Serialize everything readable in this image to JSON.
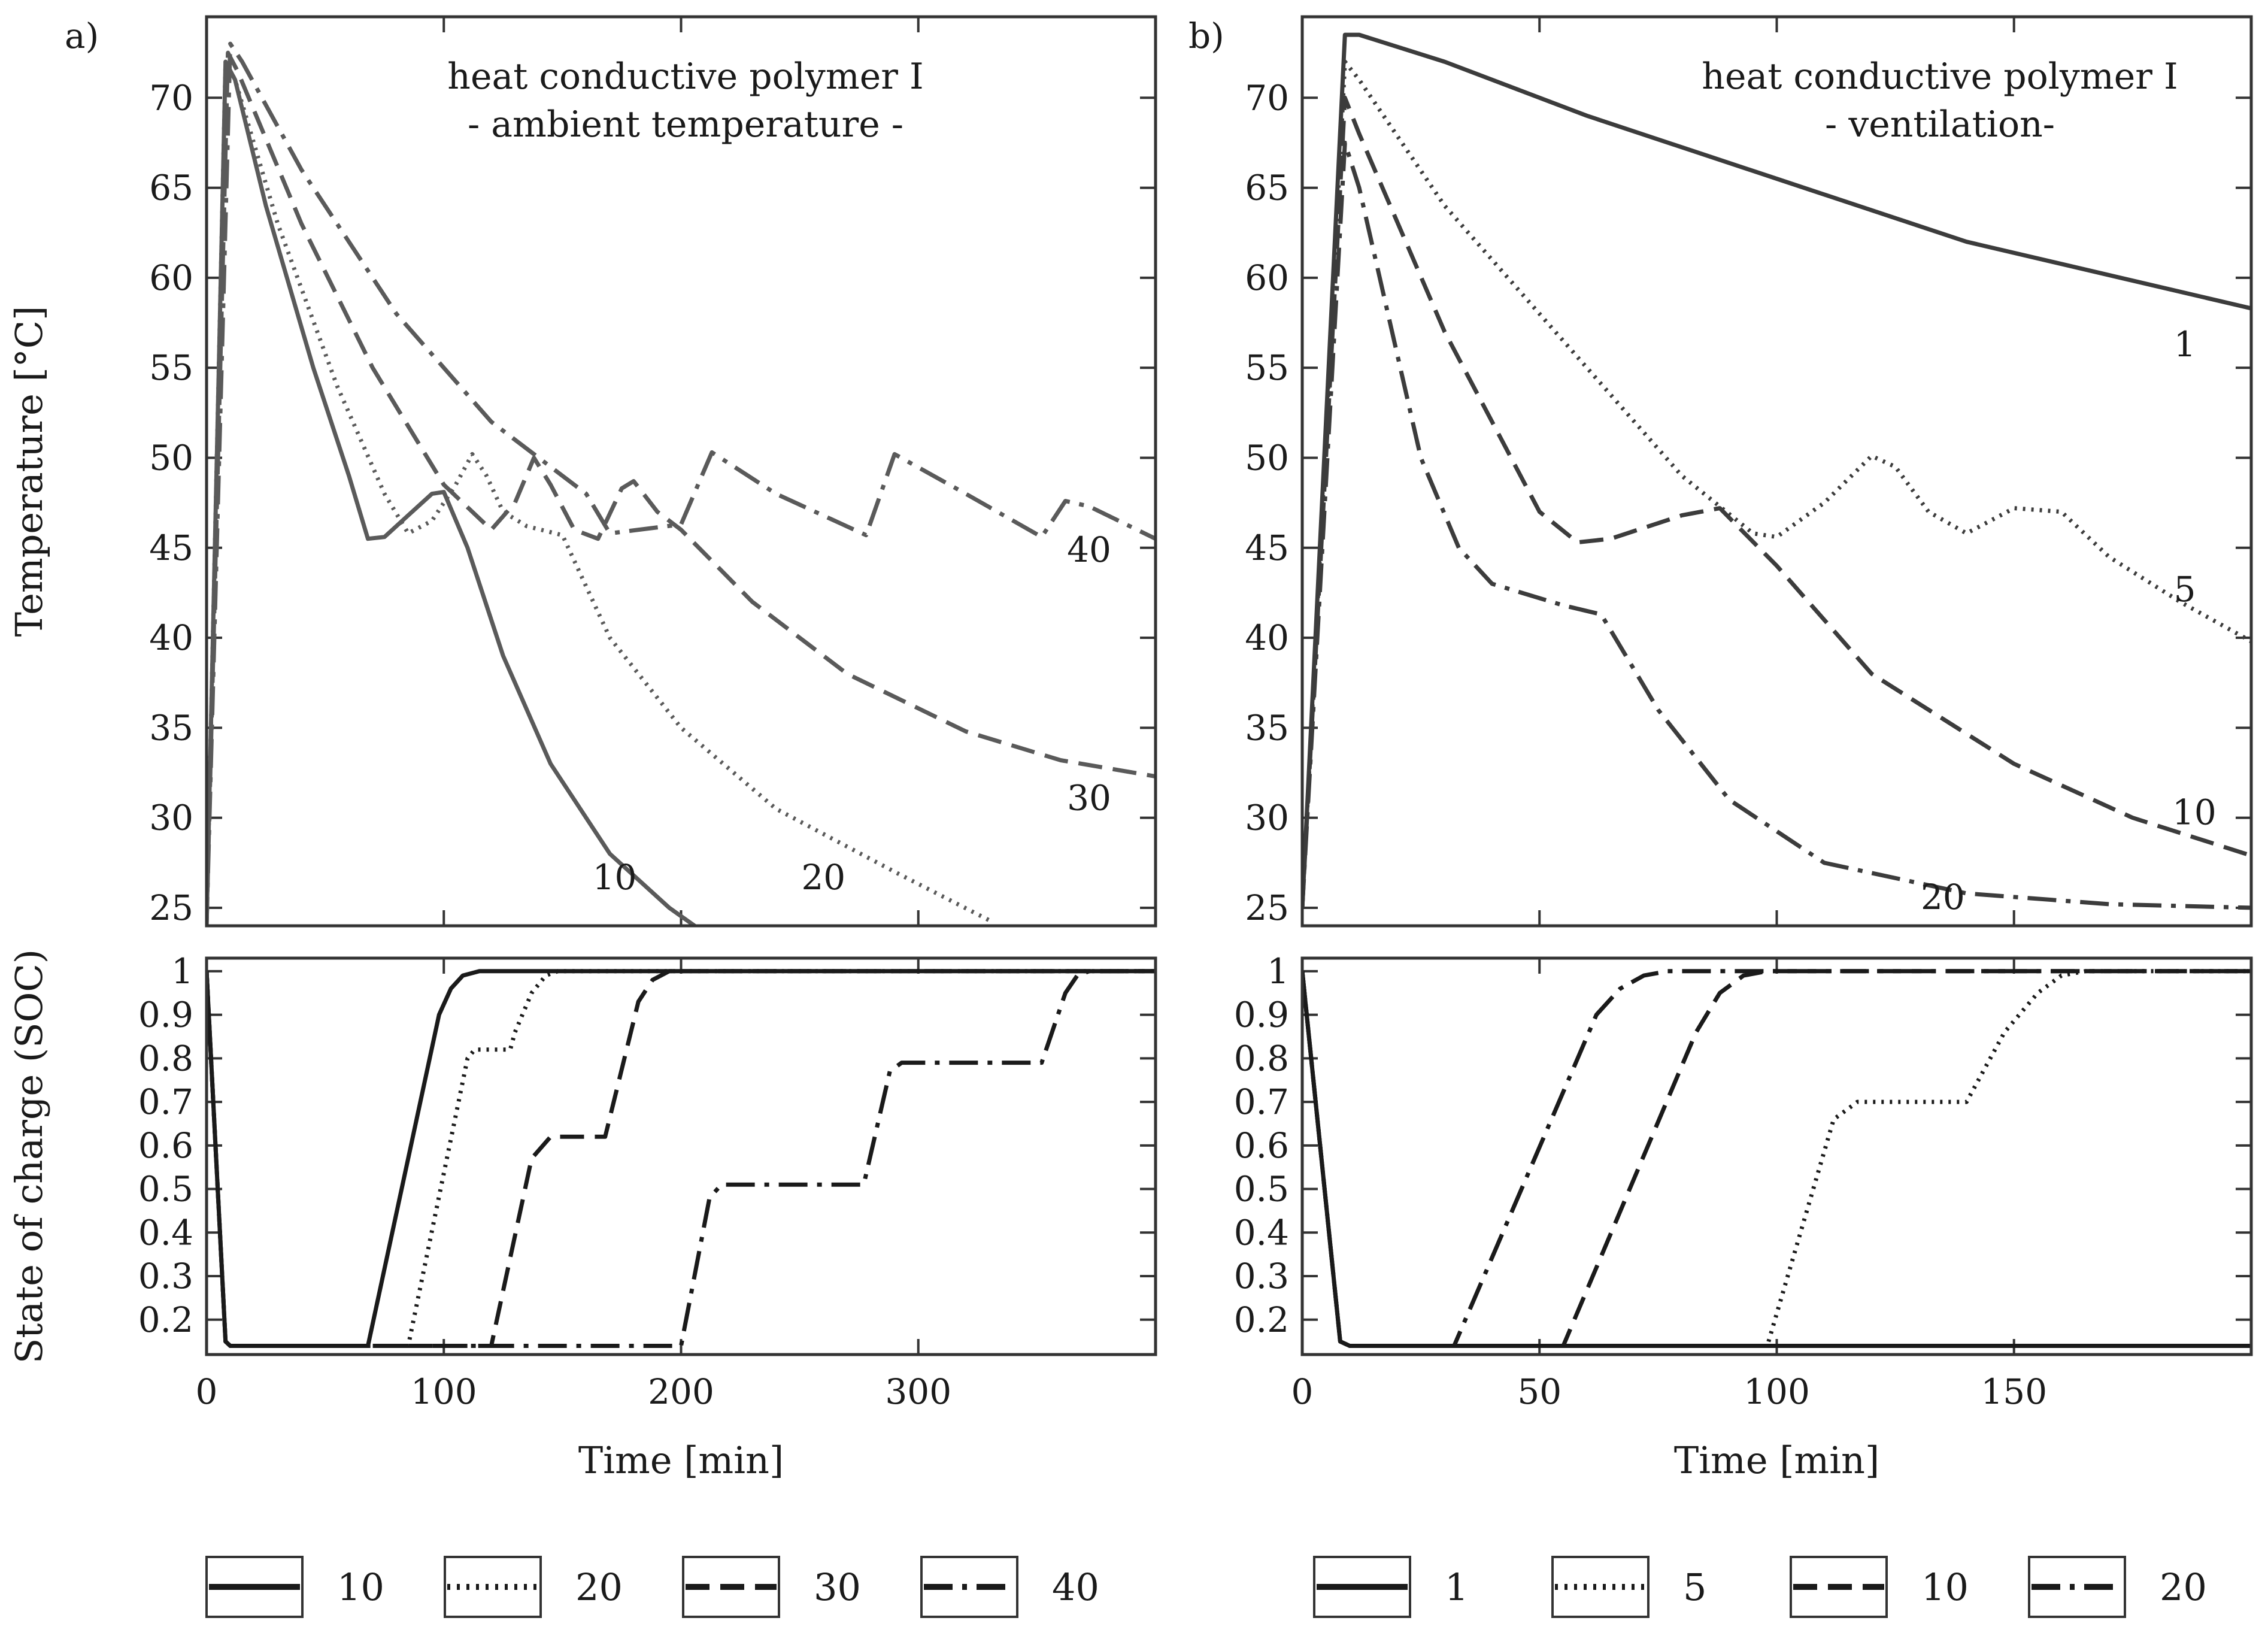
{
  "chart_data": {
    "type": "line",
    "line_styles": {
      "solid": "",
      "dotted": "4 10",
      "dashed": "40 18",
      "dashdot": "48 16 8 16"
    },
    "colors": {
      "panel_a_top": "#5a5a5a",
      "black": "#1a1a1a",
      "panel_b_top": "#3c3c3c"
    },
    "panels": [
      {
        "label": "a)",
        "title_lines": [
          "heat conductive polymer I",
          "- ambient temperature -"
        ],
        "xlabel": "Time [min]",
        "xlim": [
          0,
          400
        ],
        "xticks": [
          0,
          100,
          200,
          300
        ],
        "legend": [
          {
            "name": "10",
            "style": "solid"
          },
          {
            "name": "20",
            "style": "dotted"
          },
          {
            "name": "30",
            "style": "dashed"
          },
          {
            "name": "40",
            "style": "dashdot"
          }
        ],
        "top": {
          "ylabel": "Temperature [°C]",
          "ylim": [
            24,
            74.5
          ],
          "yticks": [
            25,
            30,
            35,
            40,
            45,
            50,
            55,
            60,
            65,
            70
          ],
          "series": [
            {
              "name": "10",
              "style": "solid",
              "color": "#5a5a5a",
              "x": [
                0,
                8,
                12,
                25,
                45,
                60,
                68,
                75,
                85,
                95,
                100,
                110,
                125,
                145,
                170,
                195,
                210
              ],
              "y": [
                24,
                72,
                71,
                64,
                55,
                49,
                45.5,
                45.6,
                46.8,
                48,
                48.1,
                45,
                39,
                33,
                28,
                25,
                23.6
              ]
            },
            {
              "name": "20",
              "style": "dotted",
              "color": "#5a5a5a",
              "x": [
                0,
                8,
                12,
                30,
                55,
                75,
                85,
                95,
                105,
                112,
                118,
                125,
                135,
                150,
                170,
                200,
                240,
                290,
                330
              ],
              "y": [
                24,
                72,
                71,
                63,
                54,
                48,
                45.8,
                46.5,
                48.5,
                50.2,
                49,
                47,
                46.2,
                45.7,
                40,
                35,
                30.5,
                27,
                24.3
              ]
            },
            {
              "name": "30",
              "style": "dashed",
              "color": "#5a5a5a",
              "x": [
                0,
                9,
                13,
                40,
                70,
                100,
                120,
                130,
                138,
                145,
                155,
                165,
                175,
                180,
                190,
                200,
                230,
                270,
                320,
                360,
                400
              ],
              "y": [
                24,
                72.5,
                71.5,
                63,
                55,
                48.5,
                46,
                47.5,
                50,
                48.5,
                46,
                45.5,
                48.3,
                48.7,
                47,
                46,
                42,
                38,
                34.8,
                33.2,
                32.3
              ]
            },
            {
              "name": "40",
              "style": "dashdot",
              "color": "#5a5a5a",
              "x": [
                0,
                10,
                15,
                40,
                80,
                120,
                160,
                170,
                200,
                213,
                240,
                278,
                290,
                320,
                352,
                362,
                372,
                400
              ],
              "y": [
                24,
                73,
                72,
                66,
                58,
                52,
                48,
                45.8,
                46.3,
                50.3,
                48,
                45.7,
                50.2,
                48,
                45.6,
                47.6,
                47.3,
                45.5
              ]
            }
          ],
          "curve_labels": [
            {
              "text": "10",
              "x": 172,
              "y": 26.7
            },
            {
              "text": "20",
              "x": 260,
              "y": 26.7
            },
            {
              "text": "30",
              "x": 372,
              "y": 31.1
            },
            {
              "text": "40",
              "x": 372,
              "y": 44.9
            }
          ]
        },
        "bottom": {
          "ylabel": "State of charge (SOC)",
          "ylim": [
            0.12,
            1.03
          ],
          "yticks": [
            0.2,
            0.3,
            0.4,
            0.5,
            0.6,
            0.7,
            0.8,
            0.9,
            1
          ],
          "series": [
            {
              "name": "10",
              "style": "solid",
              "color": "#1a1a1a",
              "x": [
                0,
                8,
                10,
                68,
                98,
                103,
                108,
                115,
                400
              ],
              "y": [
                1.0,
                0.15,
                0.14,
                0.14,
                0.9,
                0.96,
                0.99,
                1.0,
                1.0
              ]
            },
            {
              "name": "20",
              "style": "dotted",
              "color": "#1a1a1a",
              "x": [
                0,
                8,
                10,
                85,
                110,
                113,
                128,
                130,
                137,
                143,
                148,
                400
              ],
              "y": [
                1.0,
                0.15,
                0.14,
                0.14,
                0.8,
                0.82,
                0.82,
                0.86,
                0.95,
                0.99,
                1.0,
                1.0
              ]
            },
            {
              "name": "30",
              "style": "dashed",
              "color": "#1a1a1a",
              "x": [
                0,
                8,
                10,
                120,
                137,
                145,
                168,
                182,
                188,
                195,
                400
              ],
              "y": [
                1.0,
                0.15,
                0.14,
                0.14,
                0.57,
                0.62,
                0.62,
                0.93,
                0.98,
                1.0,
                1.0
              ]
            },
            {
              "name": "40",
              "style": "dashdot",
              "color": "#1a1a1a",
              "x": [
                0,
                8,
                10,
                200,
                212,
                217,
                277,
                288,
                293,
                352,
                362,
                367,
                372,
                400
              ],
              "y": [
                1.0,
                0.15,
                0.14,
                0.14,
                0.48,
                0.51,
                0.51,
                0.77,
                0.79,
                0.79,
                0.95,
                0.99,
                1.0,
                1.0
              ]
            }
          ]
        }
      },
      {
        "label": "b)",
        "title_lines": [
          "heat conductive polymer I",
          "- ventilation-"
        ],
        "xlabel": "Time [min]",
        "xlim": [
          0,
          200
        ],
        "xticks": [
          0,
          50,
          100,
          150
        ],
        "legend": [
          {
            "name": "1",
            "style": "solid"
          },
          {
            "name": "5",
            "style": "dotted"
          },
          {
            "name": "10",
            "style": "dashed"
          },
          {
            "name": "20",
            "style": "dashdot"
          }
        ],
        "top": {
          "ylabel": "",
          "ylim": [
            24,
            74.5
          ],
          "yticks": [
            25,
            30,
            35,
            40,
            45,
            50,
            55,
            60,
            65,
            70
          ],
          "series": [
            {
              "name": "1",
              "style": "solid",
              "color": "#3c3c3c",
              "x": [
                0,
                9,
                12,
                30,
                60,
                100,
                140,
                200
              ],
              "y": [
                25,
                73.5,
                73.5,
                72,
                69,
                65.5,
                62,
                58.3
              ]
            },
            {
              "name": "5",
              "style": "dotted",
              "color": "#3c3c3c",
              "x": [
                0,
                9,
                12,
                30,
                60,
                80,
                95,
                100,
                110,
                120,
                125,
                132,
                140,
                145,
                150,
                160,
                170,
                185,
                200
              ],
              "y": [
                25,
                72,
                71,
                64,
                55,
                49,
                45.8,
                45.6,
                47.5,
                50.1,
                49.5,
                47,
                45.8,
                46.5,
                47.2,
                47,
                44.5,
                42,
                39.8
              ]
            },
            {
              "name": "10",
              "style": "dashed",
              "color": "#3c3c3c",
              "x": [
                0,
                9,
                12,
                30,
                50,
                58,
                65,
                80,
                88,
                100,
                120,
                150,
                175,
                200
              ],
              "y": [
                25,
                70,
                68,
                57,
                47,
                45.3,
                45.5,
                46.8,
                47.2,
                44,
                38,
                33,
                30,
                27.9
              ]
            },
            {
              "name": "20",
              "style": "dashdot",
              "color": "#3c3c3c",
              "x": [
                0,
                9,
                12,
                25,
                33,
                40,
                55,
                63,
                75,
                90,
                110,
                140,
                170,
                200
              ],
              "y": [
                25,
                67.5,
                65,
                50,
                45,
                43,
                41.8,
                41.3,
                36,
                31,
                27.5,
                25.8,
                25.2,
                25
              ]
            }
          ],
          "curve_labels": [
            {
              "text": "1",
              "x": 186,
              "y": 56.3
            },
            {
              "text": "5",
              "x": 186,
              "y": 42.7
            },
            {
              "text": "10",
              "x": 188,
              "y": 30.3
            },
            {
              "text": "20",
              "x": 135,
              "y": 25.6
            }
          ]
        },
        "bottom": {
          "ylabel": "",
          "ylim": [
            0.12,
            1.03
          ],
          "yticks": [
            0.2,
            0.3,
            0.4,
            0.5,
            0.6,
            0.7,
            0.8,
            0.9,
            1
          ],
          "series": [
            {
              "name": "1",
              "style": "solid",
              "color": "#1a1a1a",
              "x": [
                0,
                8,
                10,
                200
              ],
              "y": [
                1.0,
                0.15,
                0.14,
                0.14
              ]
            },
            {
              "name": "5",
              "style": "dotted",
              "color": "#1a1a1a",
              "x": [
                0,
                8,
                10,
                98,
                112,
                117,
                140,
                148,
                155,
                160,
                165,
                200
              ],
              "y": [
                1.0,
                0.15,
                0.14,
                0.14,
                0.66,
                0.7,
                0.7,
                0.86,
                0.95,
                0.99,
                1.0,
                1.0
              ]
            },
            {
              "name": "10",
              "style": "dashed",
              "color": "#1a1a1a",
              "x": [
                0,
                8,
                10,
                55,
                83,
                88,
                93,
                98,
                200
              ],
              "y": [
                1.0,
                0.15,
                0.14,
                0.14,
                0.86,
                0.95,
                0.99,
                1.0,
                1.0
              ]
            },
            {
              "name": "20",
              "style": "dashdot",
              "color": "#1a1a1a",
              "x": [
                0,
                8,
                10,
                32,
                62,
                67,
                72,
                77,
                200
              ],
              "y": [
                1.0,
                0.15,
                0.14,
                0.14,
                0.9,
                0.96,
                0.99,
                1.0,
                1.0
              ]
            }
          ]
        }
      }
    ]
  }
}
